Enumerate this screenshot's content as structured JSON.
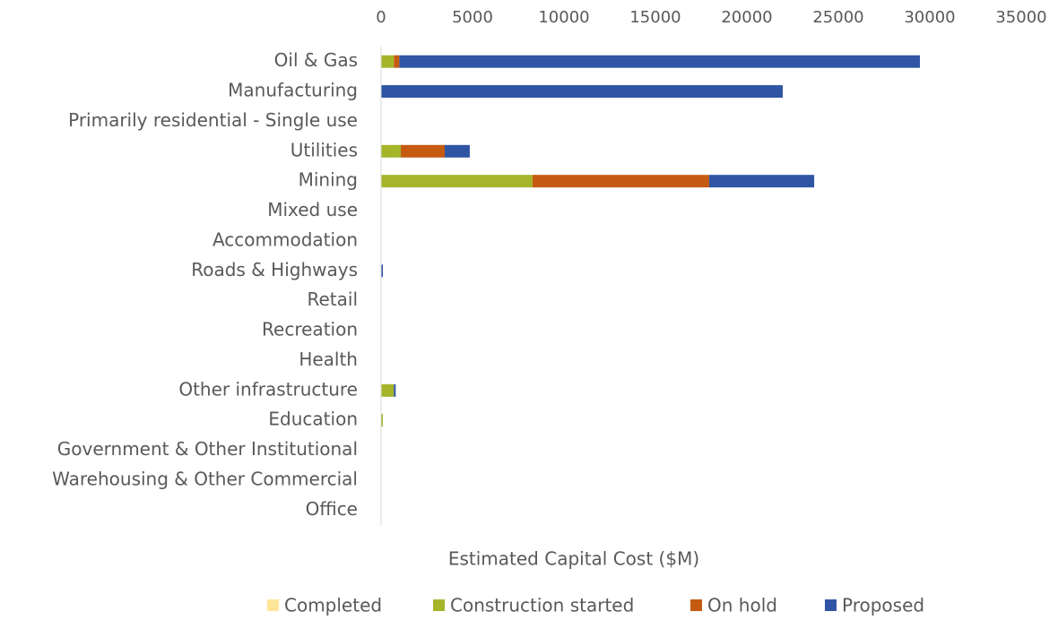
{
  "chart_data": {
    "type": "stacked_bar_horizontal",
    "x_label": "Estimated Capital Cost ($M)",
    "categories": [
      "Oil & Gas",
      "Manufacturing",
      "Primarily residential - Single use",
      "Utilities",
      "Mining",
      "Mixed use",
      "Accommodation",
      "Roads & Highways",
      "Retail",
      "Recreation",
      "Health",
      "Other infrastructure",
      "Education",
      "Government & Other Institutional",
      "Warehousing & Other Commercial",
      "Office"
    ],
    "series": [
      {
        "name": "Completed",
        "color": "#ffe699",
        "values": [
          0,
          0,
          0,
          0,
          0,
          0,
          0,
          0,
          0,
          0,
          0,
          0,
          0,
          0,
          0,
          0
        ]
      },
      {
        "name": "Construction started",
        "color": "#a5b52a",
        "values": [
          700,
          0,
          0,
          1080,
          8280,
          0,
          0,
          0,
          0,
          0,
          0,
          700,
          100,
          0,
          0,
          0
        ]
      },
      {
        "name": "On hold",
        "color": "#c55a11",
        "values": [
          300,
          0,
          0,
          2400,
          9660,
          0,
          0,
          0,
          0,
          0,
          0,
          0,
          0,
          0,
          0,
          0
        ]
      },
      {
        "name": "Proposed",
        "color": "#2f55a4",
        "values": [
          28460,
          21960,
          0,
          1370,
          5740,
          0,
          0,
          100,
          0,
          0,
          0,
          100,
          0,
          0,
          0,
          0
        ]
      }
    ],
    "xlim": [
      0,
      35000
    ],
    "xticks": [
      0,
      5000,
      10000,
      15000,
      20000,
      25000,
      30000,
      35000
    ],
    "grid": false,
    "legend": "bottom"
  }
}
